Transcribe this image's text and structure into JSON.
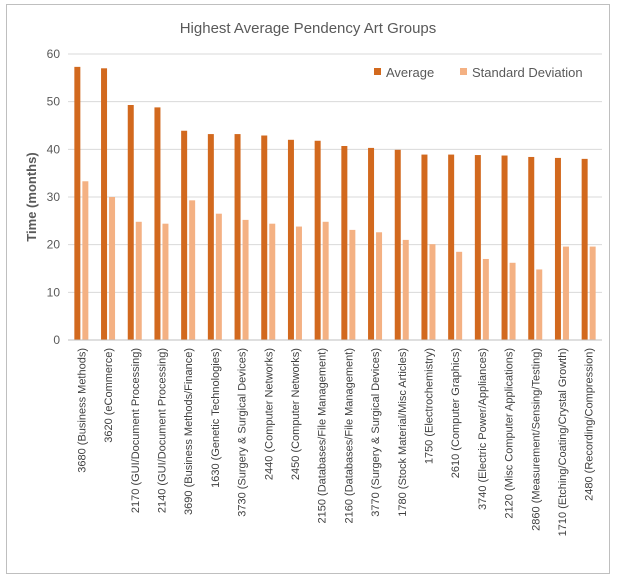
{
  "chart_data": {
    "type": "bar",
    "title": "Highest Average Pendency Art Groups",
    "xlabel": "",
    "ylabel": "Time (months)",
    "ylim": [
      0,
      60
    ],
    "yticks": [
      0,
      10,
      20,
      30,
      40,
      50,
      60
    ],
    "grid": true,
    "legend_position": "top-right",
    "categories": [
      "3680 (Business Methods)",
      "3620 (eCommerce)",
      "2170 (GUI/Document Processing)",
      "2140 (GUI/Document Processing)",
      "3690 (Business Methods/Finance)",
      "1630 (Genetic Technologies)",
      "3730 (Surgery & Surgical Devices)",
      "2440 (Computer Networks)",
      "2450 (Computer Networks)",
      "2150 (Databases/File Management)",
      "2160 (Databases/File Management)",
      "3770 (Surgery & Surgical Devices)",
      "1780 (Stock Material/Misc Articles)",
      "1750 (Electrochemistry)",
      "2610 (Computer Graphics)",
      "3740 (Electric Power/Appliances)",
      "2120 (Misc Computer Applications)",
      "2860 (Measurement/Sensing/Testing)",
      "1710 (Etching/Coating/Crystal Growth)",
      "2480 (Recording/Compression)"
    ],
    "series": [
      {
        "name": "Average",
        "color": "#d2691e",
        "values": [
          57.3,
          57.0,
          49.3,
          48.8,
          43.9,
          43.2,
          43.2,
          42.9,
          42.0,
          41.8,
          40.7,
          40.3,
          39.9,
          38.9,
          38.9,
          38.8,
          38.7,
          38.4,
          38.2,
          38.0
        ]
      },
      {
        "name": "Standard Deviation",
        "color": "#f4b183",
        "values": [
          33.3,
          30.0,
          24.8,
          24.4,
          29.3,
          26.5,
          25.2,
          24.4,
          23.8,
          24.8,
          23.1,
          22.6,
          21.0,
          20.1,
          18.5,
          17.0,
          16.2,
          14.8,
          19.6,
          19.6
        ]
      }
    ]
  }
}
